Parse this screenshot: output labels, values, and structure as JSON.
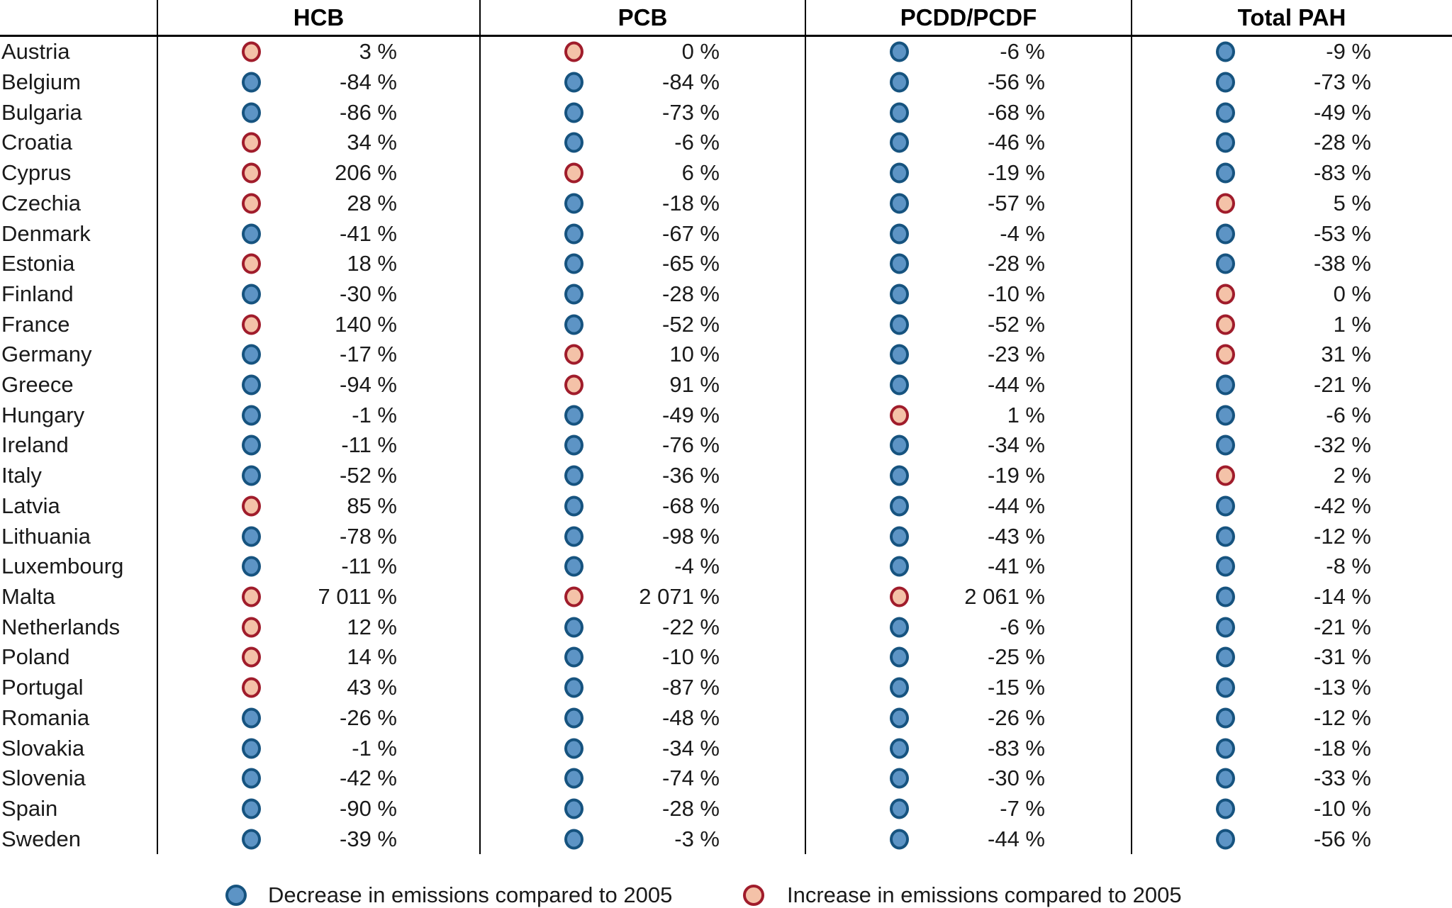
{
  "colors": {
    "decrease_fill": "#5d94c5",
    "decrease_border": "#16537f",
    "increase_fill": "#f4c2a8",
    "increase_border": "#a01c2b",
    "text": "#1a1a1a",
    "grid_line": "#000000"
  },
  "legend": {
    "decrease_label": "Decrease in emissions compared to 2005",
    "increase_label": "Increase in emissions compared to 2005"
  },
  "chart_data": {
    "type": "table",
    "unit": "%",
    "columns": [
      "HCB",
      "PCB",
      "PCDD/PCDF",
      "Total PAH"
    ],
    "rows": [
      {
        "country": "Austria",
        "values": [
          3,
          0,
          -6,
          -9
        ],
        "labels": [
          "3 %",
          "0 %",
          "-6 %",
          "-9 %"
        ],
        "trends": [
          "increase",
          "increase",
          "decrease",
          "decrease"
        ]
      },
      {
        "country": "Belgium",
        "values": [
          -84,
          -84,
          -56,
          -73
        ],
        "labels": [
          "-84 %",
          "-84 %",
          "-56 %",
          "-73 %"
        ],
        "trends": [
          "decrease",
          "decrease",
          "decrease",
          "decrease"
        ]
      },
      {
        "country": "Bulgaria",
        "values": [
          -86,
          -73,
          -68,
          -49
        ],
        "labels": [
          "-86 %",
          "-73 %",
          "-68 %",
          "-49 %"
        ],
        "trends": [
          "decrease",
          "decrease",
          "decrease",
          "decrease"
        ]
      },
      {
        "country": "Croatia",
        "values": [
          34,
          -6,
          -46,
          -28
        ],
        "labels": [
          "34 %",
          "-6 %",
          "-46 %",
          "-28 %"
        ],
        "trends": [
          "increase",
          "decrease",
          "decrease",
          "decrease"
        ]
      },
      {
        "country": "Cyprus",
        "values": [
          206,
          6,
          -19,
          -83
        ],
        "labels": [
          "206 %",
          "6 %",
          "-19 %",
          "-83 %"
        ],
        "trends": [
          "increase",
          "increase",
          "decrease",
          "decrease"
        ]
      },
      {
        "country": "Czechia",
        "values": [
          28,
          -18,
          -57,
          5
        ],
        "labels": [
          "28 %",
          "-18 %",
          "-57 %",
          "5 %"
        ],
        "trends": [
          "increase",
          "decrease",
          "decrease",
          "increase"
        ]
      },
      {
        "country": "Denmark",
        "values": [
          -41,
          -67,
          -4,
          -53
        ],
        "labels": [
          "-41 %",
          "-67 %",
          "-4 %",
          "-53 %"
        ],
        "trends": [
          "decrease",
          "decrease",
          "decrease",
          "decrease"
        ]
      },
      {
        "country": "Estonia",
        "values": [
          18,
          -65,
          -28,
          -38
        ],
        "labels": [
          "18 %",
          "-65 %",
          "-28 %",
          "-38 %"
        ],
        "trends": [
          "increase",
          "decrease",
          "decrease",
          "decrease"
        ]
      },
      {
        "country": "Finland",
        "values": [
          -30,
          -28,
          -10,
          0
        ],
        "labels": [
          "-30 %",
          "-28 %",
          "-10 %",
          "0 %"
        ],
        "trends": [
          "decrease",
          "decrease",
          "decrease",
          "increase"
        ]
      },
      {
        "country": "France",
        "values": [
          140,
          -52,
          -52,
          1
        ],
        "labels": [
          "140 %",
          "-52 %",
          "-52 %",
          "1 %"
        ],
        "trends": [
          "increase",
          "decrease",
          "decrease",
          "increase"
        ]
      },
      {
        "country": "Germany",
        "values": [
          -17,
          10,
          -23,
          31
        ],
        "labels": [
          "-17 %",
          "10 %",
          "-23 %",
          "31 %"
        ],
        "trends": [
          "decrease",
          "increase",
          "decrease",
          "increase"
        ]
      },
      {
        "country": "Greece",
        "values": [
          -94,
          91,
          -44,
          -21
        ],
        "labels": [
          "-94 %",
          "91 %",
          "-44 %",
          "-21 %"
        ],
        "trends": [
          "decrease",
          "increase",
          "decrease",
          "decrease"
        ]
      },
      {
        "country": "Hungary",
        "values": [
          -1,
          -49,
          1,
          -6
        ],
        "labels": [
          "-1 %",
          "-49 %",
          "1 %",
          "-6 %"
        ],
        "trends": [
          "decrease",
          "decrease",
          "increase",
          "decrease"
        ]
      },
      {
        "country": "Ireland",
        "values": [
          -11,
          -76,
          -34,
          -32
        ],
        "labels": [
          "-11 %",
          "-76 %",
          "-34 %",
          "-32 %"
        ],
        "trends": [
          "decrease",
          "decrease",
          "decrease",
          "decrease"
        ]
      },
      {
        "country": "Italy",
        "values": [
          -52,
          -36,
          -19,
          2
        ],
        "labels": [
          "-52 %",
          "-36 %",
          "-19 %",
          "2 %"
        ],
        "trends": [
          "decrease",
          "decrease",
          "decrease",
          "increase"
        ]
      },
      {
        "country": "Latvia",
        "values": [
          85,
          -68,
          -44,
          -42
        ],
        "labels": [
          "85 %",
          "-68 %",
          "-44 %",
          "-42 %"
        ],
        "trends": [
          "increase",
          "decrease",
          "decrease",
          "decrease"
        ]
      },
      {
        "country": "Lithuania",
        "values": [
          -78,
          -98,
          -43,
          -12
        ],
        "labels": [
          "-78 %",
          "-98 %",
          "-43 %",
          "-12 %"
        ],
        "trends": [
          "decrease",
          "decrease",
          "decrease",
          "decrease"
        ]
      },
      {
        "country": "Luxembourg",
        "values": [
          -11,
          -4,
          -41,
          -8
        ],
        "labels": [
          "-11 %",
          "-4 %",
          "-41 %",
          "-8 %"
        ],
        "trends": [
          "decrease",
          "decrease",
          "decrease",
          "decrease"
        ]
      },
      {
        "country": "Malta",
        "values": [
          7011,
          2071,
          2061,
          -14
        ],
        "labels": [
          "7 011 %",
          "2 071 %",
          "2 061 %",
          "-14 %"
        ],
        "trends": [
          "increase",
          "increase",
          "increase",
          "decrease"
        ]
      },
      {
        "country": "Netherlands",
        "values": [
          12,
          -22,
          -6,
          -21
        ],
        "labels": [
          "12 %",
          "-22 %",
          "-6 %",
          "-21 %"
        ],
        "trends": [
          "increase",
          "decrease",
          "decrease",
          "decrease"
        ]
      },
      {
        "country": "Poland",
        "values": [
          14,
          -10,
          -25,
          -31
        ],
        "labels": [
          "14 %",
          "-10 %",
          "-25 %",
          "-31 %"
        ],
        "trends": [
          "increase",
          "decrease",
          "decrease",
          "decrease"
        ]
      },
      {
        "country": "Portugal",
        "values": [
          43,
          -87,
          -15,
          -13
        ],
        "labels": [
          "43 %",
          "-87 %",
          "-15 %",
          "-13 %"
        ],
        "trends": [
          "increase",
          "decrease",
          "decrease",
          "decrease"
        ]
      },
      {
        "country": "Romania",
        "values": [
          -26,
          -48,
          -26,
          -12
        ],
        "labels": [
          "-26 %",
          "-48 %",
          "-26 %",
          "-12 %"
        ],
        "trends": [
          "decrease",
          "decrease",
          "decrease",
          "decrease"
        ]
      },
      {
        "country": "Slovakia",
        "values": [
          -1,
          -34,
          -83,
          -18
        ],
        "labels": [
          "-1 %",
          "-34 %",
          "-83 %",
          "-18 %"
        ],
        "trends": [
          "decrease",
          "decrease",
          "decrease",
          "decrease"
        ]
      },
      {
        "country": "Slovenia",
        "values": [
          -42,
          -74,
          -30,
          -33
        ],
        "labels": [
          "-42 %",
          "-74 %",
          "-30 %",
          "-33 %"
        ],
        "trends": [
          "decrease",
          "decrease",
          "decrease",
          "decrease"
        ]
      },
      {
        "country": "Spain",
        "values": [
          -90,
          -28,
          -7,
          -10
        ],
        "labels": [
          "-90 %",
          "-28 %",
          "-7 %",
          "-10 %"
        ],
        "trends": [
          "decrease",
          "decrease",
          "decrease",
          "decrease"
        ]
      },
      {
        "country": "Sweden",
        "values": [
          -39,
          -3,
          -44,
          -56
        ],
        "labels": [
          "-39 %",
          "-3 %",
          "-44 %",
          "-56 %"
        ],
        "trends": [
          "decrease",
          "decrease",
          "decrease",
          "decrease"
        ]
      }
    ]
  }
}
